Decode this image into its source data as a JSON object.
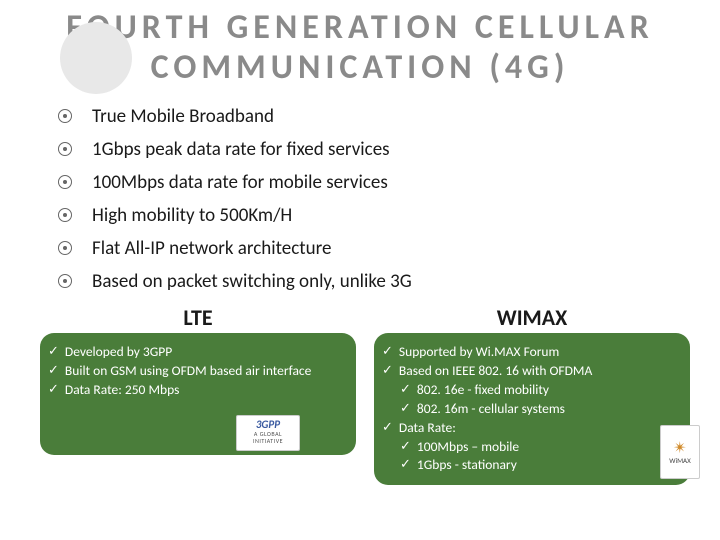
{
  "title": "FOURTH GENERATION CELLULAR COMMUNICATION (4G)",
  "mainList": [
    "True Mobile Broadband",
    "1Gbps peak data rate for fixed services",
    "100Mbps data rate for mobile services",
    "High mobility to 500Km/H",
    "Flat All-IP network architecture",
    "Based on packet switching only, unlike 3G"
  ],
  "colLeft": {
    "heading": "LTE",
    "items": [
      {
        "text": "Developed by 3GPP",
        "indent": 0
      },
      {
        "text": "Built on GSM using OFDM based air interface",
        "indent": 0
      },
      {
        "text": "Data Rate: 250 Mbps",
        "indent": 0
      }
    ],
    "logo": {
      "line1": "3GPP",
      "line2": "A GLOBAL INITIATIVE"
    }
  },
  "colRight": {
    "heading": "WIMAX",
    "items": [
      {
        "text": "Supported by Wi.MAX Forum",
        "indent": 0
      },
      {
        "text": "Based on IEEE 802. 16 with OFDMA",
        "indent": 0
      },
      {
        "text": "802. 16e  -  fixed mobility",
        "indent": 1
      },
      {
        "text": "802. 16m  -  cellular systems",
        "indent": 1
      },
      {
        "text": "Data Rate:",
        "indent": 0
      },
      {
        "text": "100Mbps – mobile",
        "indent": 1
      },
      {
        "text": "1Gbps - stationary",
        "indent": 1
      }
    ],
    "logo": {
      "line1": "✴",
      "line2": "WiMAX"
    }
  },
  "colors": {
    "titleGray": "#8a8a8a",
    "boxGreen": "#4a7d3a",
    "textDark": "#1a1a1a",
    "bg": "#ffffff"
  }
}
